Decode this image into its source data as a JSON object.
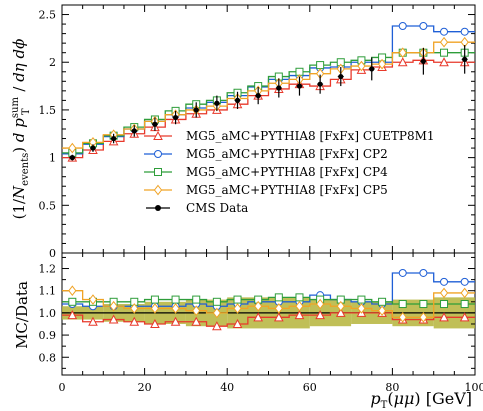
{
  "chart_data": [
    {
      "type": "line",
      "panel": "main",
      "ylabel": "(1/N_events) dp_T^sum/dη dϕ",
      "ylim": [
        0,
        2.6
      ],
      "yticks": [
        0,
        0.5,
        1,
        1.5,
        2,
        2.5
      ],
      "xlim": [
        0,
        100
      ],
      "x_edges": [
        0,
        5,
        10,
        15,
        20,
        25,
        30,
        35,
        40,
        45,
        50,
        55,
        60,
        65,
        70,
        75,
        80,
        85,
        90,
        95,
        100
      ],
      "legend_position": "lower-left",
      "series": [
        {
          "name": "MG5_aMC+PYTHIA8 [FxFx] CUETP8M1",
          "color": "#e8392b",
          "marker": "triangle",
          "values": [
            1.0,
            1.08,
            1.17,
            1.25,
            1.32,
            1.4,
            1.46,
            1.5,
            1.56,
            1.65,
            1.72,
            1.77,
            1.75,
            1.82,
            1.92,
            1.95,
            2.0,
            2.02,
            2.0,
            2.0
          ]
        },
        {
          "name": "MG5_aMC+PYTHIA8 [FxFx] CP2",
          "color": "#1f5fd6",
          "marker": "circle",
          "values": [
            1.04,
            1.14,
            1.22,
            1.3,
            1.38,
            1.45,
            1.52,
            1.58,
            1.65,
            1.74,
            1.82,
            1.86,
            1.94,
            1.95,
            2.0,
            2.0,
            2.38,
            2.38,
            2.32,
            2.32
          ]
        },
        {
          "name": "MG5_aMC+PYTHIA8 [FxFx] CP4",
          "color": "#2e9d3a",
          "marker": "square",
          "values": [
            1.05,
            1.15,
            1.23,
            1.32,
            1.4,
            1.49,
            1.56,
            1.6,
            1.68,
            1.75,
            1.85,
            1.9,
            1.97,
            2.0,
            2.02,
            2.05,
            2.1,
            2.1,
            2.1,
            2.1
          ]
        },
        {
          "name": "MG5_aMC+PYTHIA8 [FxFx] CP5",
          "color": "#f0a325",
          "marker": "diamond",
          "values": [
            1.1,
            1.16,
            1.24,
            1.3,
            1.38,
            1.45,
            1.5,
            1.54,
            1.62,
            1.7,
            1.78,
            1.82,
            1.88,
            1.93,
            1.96,
            1.98,
            2.1,
            2.1,
            2.21,
            2.21
          ]
        }
      ],
      "data": {
        "name": "CMS Data",
        "color": "#000000",
        "x": [
          2.5,
          7.5,
          12.5,
          17.5,
          22.5,
          27.5,
          32.5,
          37.5,
          42.5,
          47.5,
          52.5,
          57.5,
          62.5,
          67.5,
          75,
          87.5,
          97.5
        ],
        "y": [
          1.0,
          1.1,
          1.2,
          1.28,
          1.35,
          1.42,
          1.5,
          1.57,
          1.6,
          1.65,
          1.73,
          1.75,
          1.77,
          1.85,
          1.93,
          2.01,
          2.03
        ],
        "yerr": [
          0.03,
          0.04,
          0.05,
          0.06,
          0.07,
          0.07,
          0.08,
          0.08,
          0.09,
          0.09,
          0.1,
          0.1,
          0.1,
          0.1,
          0.12,
          0.14,
          0.15
        ]
      }
    },
    {
      "type": "line",
      "panel": "ratio",
      "ylabel": "MC/Data",
      "xlabel": "p_T(μμ) [GeV]",
      "ylim": [
        0.72,
        1.27
      ],
      "yticks": [
        0.8,
        0.9,
        1.0,
        1.1,
        1.2
      ],
      "xlim": [
        0,
        100
      ],
      "xticks": [
        0,
        20,
        40,
        60,
        80,
        100
      ],
      "x_edges": [
        0,
        5,
        10,
        15,
        20,
        25,
        30,
        35,
        40,
        45,
        50,
        55,
        60,
        65,
        70,
        75,
        80,
        85,
        90,
        95,
        100
      ],
      "band_edges": [
        0,
        10,
        20,
        30,
        40,
        50,
        60,
        70,
        80,
        90,
        100
      ],
      "band_half_width": [
        0.03,
        0.04,
        0.05,
        0.06,
        0.07,
        0.07,
        0.06,
        0.05,
        0.06,
        0.07
      ],
      "band_color": "#b5b43a",
      "series": [
        {
          "name": "CUETP8M1",
          "color": "#e8392b",
          "marker": "triangle",
          "values": [
            0.99,
            0.96,
            0.97,
            0.96,
            0.95,
            0.96,
            0.96,
            0.94,
            0.95,
            0.98,
            0.98,
            0.99,
            0.99,
            1.0,
            1.0,
            1.0,
            0.97,
            0.97,
            0.98,
            0.98
          ]
        },
        {
          "name": "CP2",
          "color": "#1f5fd6",
          "marker": "circle",
          "values": [
            1.04,
            1.03,
            1.03,
            1.03,
            1.03,
            1.03,
            1.04,
            1.03,
            1.04,
            1.05,
            1.05,
            1.05,
            1.08,
            1.06,
            1.05,
            1.04,
            1.18,
            1.18,
            1.14,
            1.14
          ]
        },
        {
          "name": "CP4",
          "color": "#2e9d3a",
          "marker": "square",
          "values": [
            1.05,
            1.05,
            1.05,
            1.05,
            1.06,
            1.06,
            1.06,
            1.05,
            1.06,
            1.06,
            1.07,
            1.07,
            1.06,
            1.06,
            1.06,
            1.05,
            1.04,
            1.04,
            1.04,
            1.04
          ]
        },
        {
          "name": "CP5",
          "color": "#f0a325",
          "marker": "diamond",
          "values": [
            1.1,
            1.06,
            1.03,
            1.02,
            1.02,
            1.02,
            1.01,
            1.0,
            1.02,
            1.03,
            1.02,
            1.03,
            1.04,
            1.03,
            1.02,
            1.01,
            0.98,
            0.98,
            1.09,
            1.09
          ]
        }
      ]
    }
  ]
}
